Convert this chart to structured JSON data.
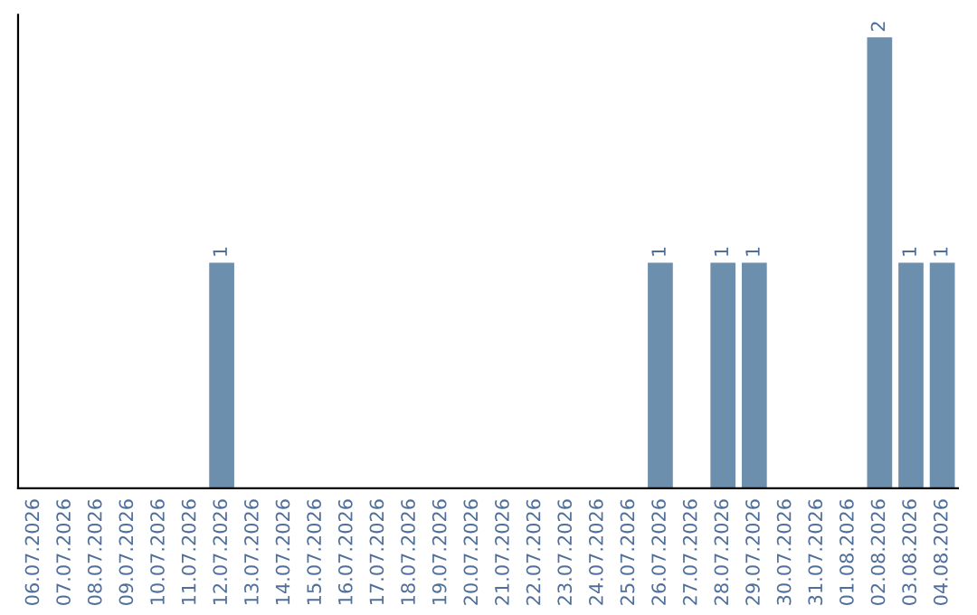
{
  "chart_data": {
    "type": "bar",
    "categories": [
      "06.07.2026",
      "07.07.2026",
      "08.07.2026",
      "09.07.2026",
      "10.07.2026",
      "11.07.2026",
      "12.07.2026",
      "13.07.2026",
      "14.07.2026",
      "15.07.2026",
      "16.07.2026",
      "17.07.2026",
      "18.07.2026",
      "19.07.2026",
      "20.07.2026",
      "21.07.2026",
      "22.07.2026",
      "23.07.2026",
      "24.07.2026",
      "25.07.2026",
      "26.07.2026",
      "27.07.2026",
      "28.07.2026",
      "29.07.2026",
      "30.07.2026",
      "31.07.2026",
      "01.08.2026",
      "02.08.2026",
      "03.08.2026",
      "04.08.2026"
    ],
    "values": [
      0,
      0,
      0,
      0,
      0,
      0,
      1,
      0,
      0,
      0,
      0,
      0,
      0,
      0,
      0,
      0,
      0,
      0,
      0,
      0,
      1,
      0,
      1,
      1,
      0,
      0,
      0,
      2,
      1,
      1
    ],
    "value_labels": [
      null,
      null,
      null,
      null,
      null,
      null,
      "1",
      null,
      null,
      null,
      null,
      null,
      null,
      null,
      null,
      null,
      null,
      null,
      null,
      null,
      "1",
      null,
      "1",
      "1",
      null,
      null,
      null,
      "2",
      "1",
      "1"
    ],
    "color": "#6d8fae",
    "tick_labels": "x",
    "grid": false,
    "legend": false
  }
}
